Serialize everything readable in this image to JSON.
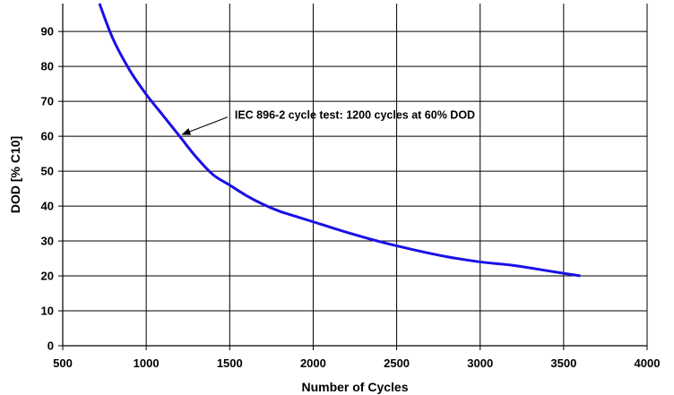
{
  "chart_data": {
    "type": "line",
    "title": "",
    "xlabel": "Number of Cycles",
    "ylabel": "DOD [% C10]",
    "xlim": [
      500,
      4000
    ],
    "ylim": [
      0,
      98
    ],
    "x_ticks": [
      500,
      1000,
      1500,
      2000,
      2500,
      3000,
      3500,
      4000
    ],
    "y_ticks": [
      0,
      10,
      20,
      30,
      40,
      50,
      60,
      70,
      80,
      90
    ],
    "grid": true,
    "legend": "none",
    "series": [
      {
        "color": "#1a10e6",
        "points": [
          [
            720,
            98
          ],
          [
            800,
            88
          ],
          [
            900,
            79
          ],
          [
            1000,
            72
          ],
          [
            1100,
            66
          ],
          [
            1200,
            60
          ],
          [
            1300,
            54
          ],
          [
            1400,
            49
          ],
          [
            1500,
            46
          ],
          [
            1600,
            43
          ],
          [
            1700,
            40.5
          ],
          [
            1800,
            38.5
          ],
          [
            1900,
            37
          ],
          [
            2000,
            35.5
          ],
          [
            2200,
            32.5
          ],
          [
            2400,
            29.8
          ],
          [
            2600,
            27.5
          ],
          [
            2800,
            25.5
          ],
          [
            3000,
            24
          ],
          [
            3200,
            23
          ],
          [
            3400,
            21.5
          ],
          [
            3600,
            20
          ]
        ]
      }
    ],
    "annotations": [
      {
        "text": "IEC 896-2 cycle test: 1200 cycles at 60% DOD",
        "point": [
          1200,
          60
        ],
        "text_anchor_data": [
          1530,
          66
        ]
      }
    ]
  }
}
